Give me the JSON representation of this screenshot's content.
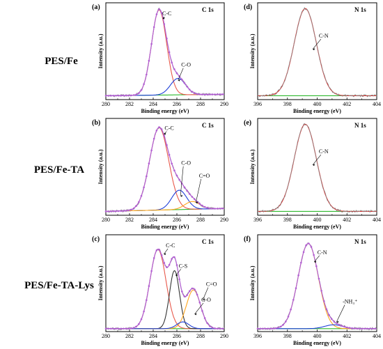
{
  "row_labels": [
    "PES/Fe",
    "PES/Fe-TA",
    "PES/Fe-TA-Lys"
  ],
  "colors": {
    "raw": "#8a8a8a",
    "envelope": "#b25fd3",
    "background": "#2db82d",
    "cc": "#e8584a",
    "co": "#1f3fd8",
    "ceo": "#ffa51e",
    "cs": "#333333",
    "nh3": "#1f3fd8",
    "cn_red": "#e02020"
  },
  "chart_data": [
    {
      "panel": "(a)",
      "title": "C 1s",
      "type": "line",
      "xlabel": "Binding energy (eV)",
      "ylabel": "Intensity (a.u.)",
      "xlim": [
        280,
        290
      ],
      "xticks": [
        280,
        282,
        284,
        286,
        288,
        290
      ],
      "x_reversed": false,
      "show_envelope_points": true,
      "background": [
        0.04,
        0.055
      ],
      "series": [
        {
          "name": "C-C",
          "key": "cc",
          "center": 284.5,
          "fwhm": 1.5,
          "amp": 0.88
        },
        {
          "name": "C-O",
          "key": "co",
          "center": 286.1,
          "fwhm": 1.5,
          "amp": 0.17
        }
      ],
      "annotations": [
        {
          "text": "C-C",
          "x": 285.0,
          "y": 0.87,
          "tx": 284.8,
          "ty": 0.84
        },
        {
          "text": "C-O",
          "x": 286.6,
          "y": 0.34,
          "tx": 286.1,
          "ty": 0.2
        }
      ]
    },
    {
      "panel": "(b)",
      "title": "C 1s",
      "type": "line",
      "xlabel": "Binding energy (eV)",
      "ylabel": "Intensity (a.u.)",
      "xlim": [
        280,
        290
      ],
      "xticks": [
        280,
        282,
        284,
        286,
        288,
        290
      ],
      "x_reversed": false,
      "show_envelope_points": true,
      "background": [
        0.04,
        0.07
      ],
      "series": [
        {
          "name": "C-C",
          "key": "cc",
          "center": 284.5,
          "fwhm": 1.9,
          "amp": 0.85
        },
        {
          "name": "C-O",
          "key": "co",
          "center": 286.2,
          "fwhm": 1.5,
          "amp": 0.2
        },
        {
          "name": "C=O",
          "key": "ceo",
          "center": 287.3,
          "fwhm": 1.5,
          "amp": 0.08
        }
      ],
      "annotations": [
        {
          "text": "C-C",
          "x": 285.2,
          "y": 0.88,
          "tx": 284.9,
          "ty": 0.84
        },
        {
          "text": "C-O",
          "x": 286.6,
          "y": 0.52,
          "tx": 286.3,
          "ty": 0.2
        },
        {
          "text": "C=O",
          "x": 288.1,
          "y": 0.39,
          "tx": 287.6,
          "ty": 0.13
        }
      ]
    },
    {
      "panel": "(c)",
      "title": "C 1s",
      "type": "line",
      "xlabel": "Binding energy (eV)",
      "ylabel": "Intensity (a.u.)",
      "xlim": [
        280,
        290
      ],
      "xticks": [
        280,
        282,
        284,
        286,
        288,
        290
      ],
      "x_reversed": false,
      "show_envelope_points": true,
      "background": [
        0.03,
        0.03
      ],
      "series": [
        {
          "name": "C-C",
          "key": "cc",
          "center": 284.4,
          "fwhm": 1.6,
          "amp": 0.82
        },
        {
          "name": "C-S",
          "key": "cs",
          "center": 285.8,
          "fwhm": 1.0,
          "amp": 0.6
        },
        {
          "name": "C=O",
          "key": "ceo",
          "center": 287.4,
          "fwhm": 1.4,
          "amp": 0.4
        },
        {
          "name": "C-O",
          "key": "co",
          "center": 286.5,
          "fwhm": 1.2,
          "amp": 0.07
        }
      ],
      "annotations": [
        {
          "text": "C-C",
          "x": 285.3,
          "y": 0.87,
          "tx": 284.9,
          "ty": 0.8
        },
        {
          "text": "C-S",
          "x": 286.4,
          "y": 0.66,
          "tx": 285.9,
          "ty": 0.58
        },
        {
          "text": "C=O",
          "x": 288.7,
          "y": 0.47,
          "tx": 288.2,
          "ty": 0.33
        },
        {
          "text": "C-O",
          "x": 288.3,
          "y": 0.31,
          "tx": 287.5,
          "ty": 0.18
        }
      ]
    },
    {
      "panel": "(d)",
      "title": "N 1s",
      "type": "line",
      "xlabel": "Binding energy (eV)",
      "ylabel": "Intensity (a.u.)",
      "xlim": [
        396,
        404
      ],
      "xticks": [
        396,
        398,
        400,
        402,
        404
      ],
      "x_reversed": false,
      "show_envelope_points": false,
      "background": [
        0.04,
        0.04
      ],
      "series": [
        {
          "name": "C-N",
          "key": "cn_red",
          "center": 399.2,
          "fwhm": 1.75,
          "amp": 0.9
        }
      ],
      "annotations": [
        {
          "text": "C-N",
          "x": 400.3,
          "y": 0.64,
          "tx": 399.7,
          "ty": 0.52
        }
      ]
    },
    {
      "panel": "(e)",
      "title": "N 1s",
      "type": "line",
      "xlabel": "Binding energy (eV)",
      "ylabel": "Intensity (a.u.)",
      "xlim": [
        396,
        404
      ],
      "xticks": [
        396,
        398,
        400,
        402,
        404
      ],
      "x_reversed": false,
      "show_envelope_points": false,
      "background": [
        0.04,
        0.04
      ],
      "series": [
        {
          "name": "C-N",
          "key": "cn_red",
          "center": 399.2,
          "fwhm": 1.75,
          "amp": 0.9
        }
      ],
      "annotations": [
        {
          "text": "C-N",
          "x": 400.3,
          "y": 0.64,
          "tx": 399.7,
          "ty": 0.52
        }
      ]
    },
    {
      "panel": "(f)",
      "title": "N 1s",
      "type": "line",
      "xlabel": "Binding energy (eV)",
      "ylabel": "Intensity (a.u.)",
      "xlim": [
        396,
        404
      ],
      "xticks": [
        396,
        398,
        400,
        402,
        404
      ],
      "x_reversed": false,
      "show_envelope_points": true,
      "background": [
        0.03,
        0.03
      ],
      "series": [
        {
          "name": "C-N",
          "key": "ceo",
          "center": 399.4,
          "fwhm": 1.6,
          "amp": 0.88
        },
        {
          "name": "-NH3+",
          "key": "nh3",
          "center": 401.1,
          "fwhm": 1.4,
          "amp": 0.04
        }
      ],
      "annotations": [
        {
          "text": "C-N",
          "x": 400.2,
          "y": 0.8,
          "tx": 399.8,
          "ty": 0.72
        },
        {
          "text": "-NH₃⁺",
          "x": 401.9,
          "y": 0.29,
          "tx": 401.3,
          "ty": 0.1
        }
      ]
    }
  ]
}
